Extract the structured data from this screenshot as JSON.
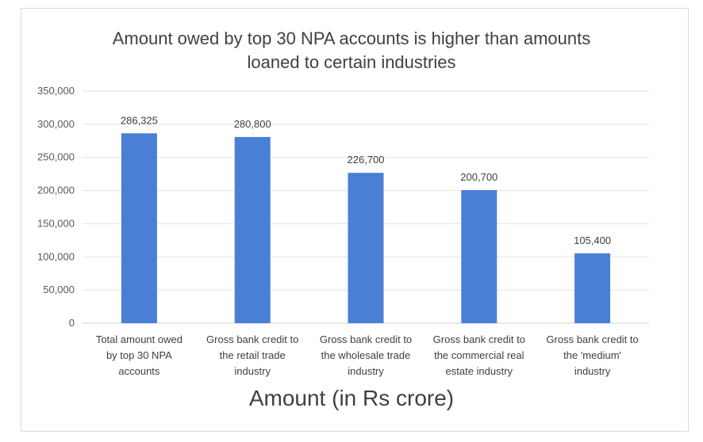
{
  "chart_data": {
    "type": "bar",
    "title_lines": [
      "Amount owed by top 30 NPA accounts is higher than amounts",
      "loaned to certain industries"
    ],
    "xlabel": "Amount (in Rs crore)",
    "ylabel": "",
    "ylim": [
      0,
      350000
    ],
    "yticks": [
      0,
      50000,
      100000,
      150000,
      200000,
      250000,
      300000,
      350000
    ],
    "ytick_labels": [
      "0",
      "50,000",
      "100,000",
      "150,000",
      "200,000",
      "250,000",
      "300,000",
      "350,000"
    ],
    "grid": true,
    "bar_color": "#4a7fd6",
    "categories": [
      [
        "Total amount owed",
        "by top 30 NPA",
        "accounts"
      ],
      [
        "Gross bank credit to",
        "the retail trade",
        "industry"
      ],
      [
        "Gross bank credit to",
        "the wholesale trade",
        "industry"
      ],
      [
        "Gross bank credit to",
        "the commercial real",
        "estate industry"
      ],
      [
        "Gross bank credit to",
        "the 'medium'",
        "industry"
      ]
    ],
    "values": [
      286325,
      280800,
      226700,
      200700,
      105400
    ],
    "data_labels": [
      "286,325",
      "280,800",
      "226,700",
      "200,700",
      "105,400"
    ]
  }
}
